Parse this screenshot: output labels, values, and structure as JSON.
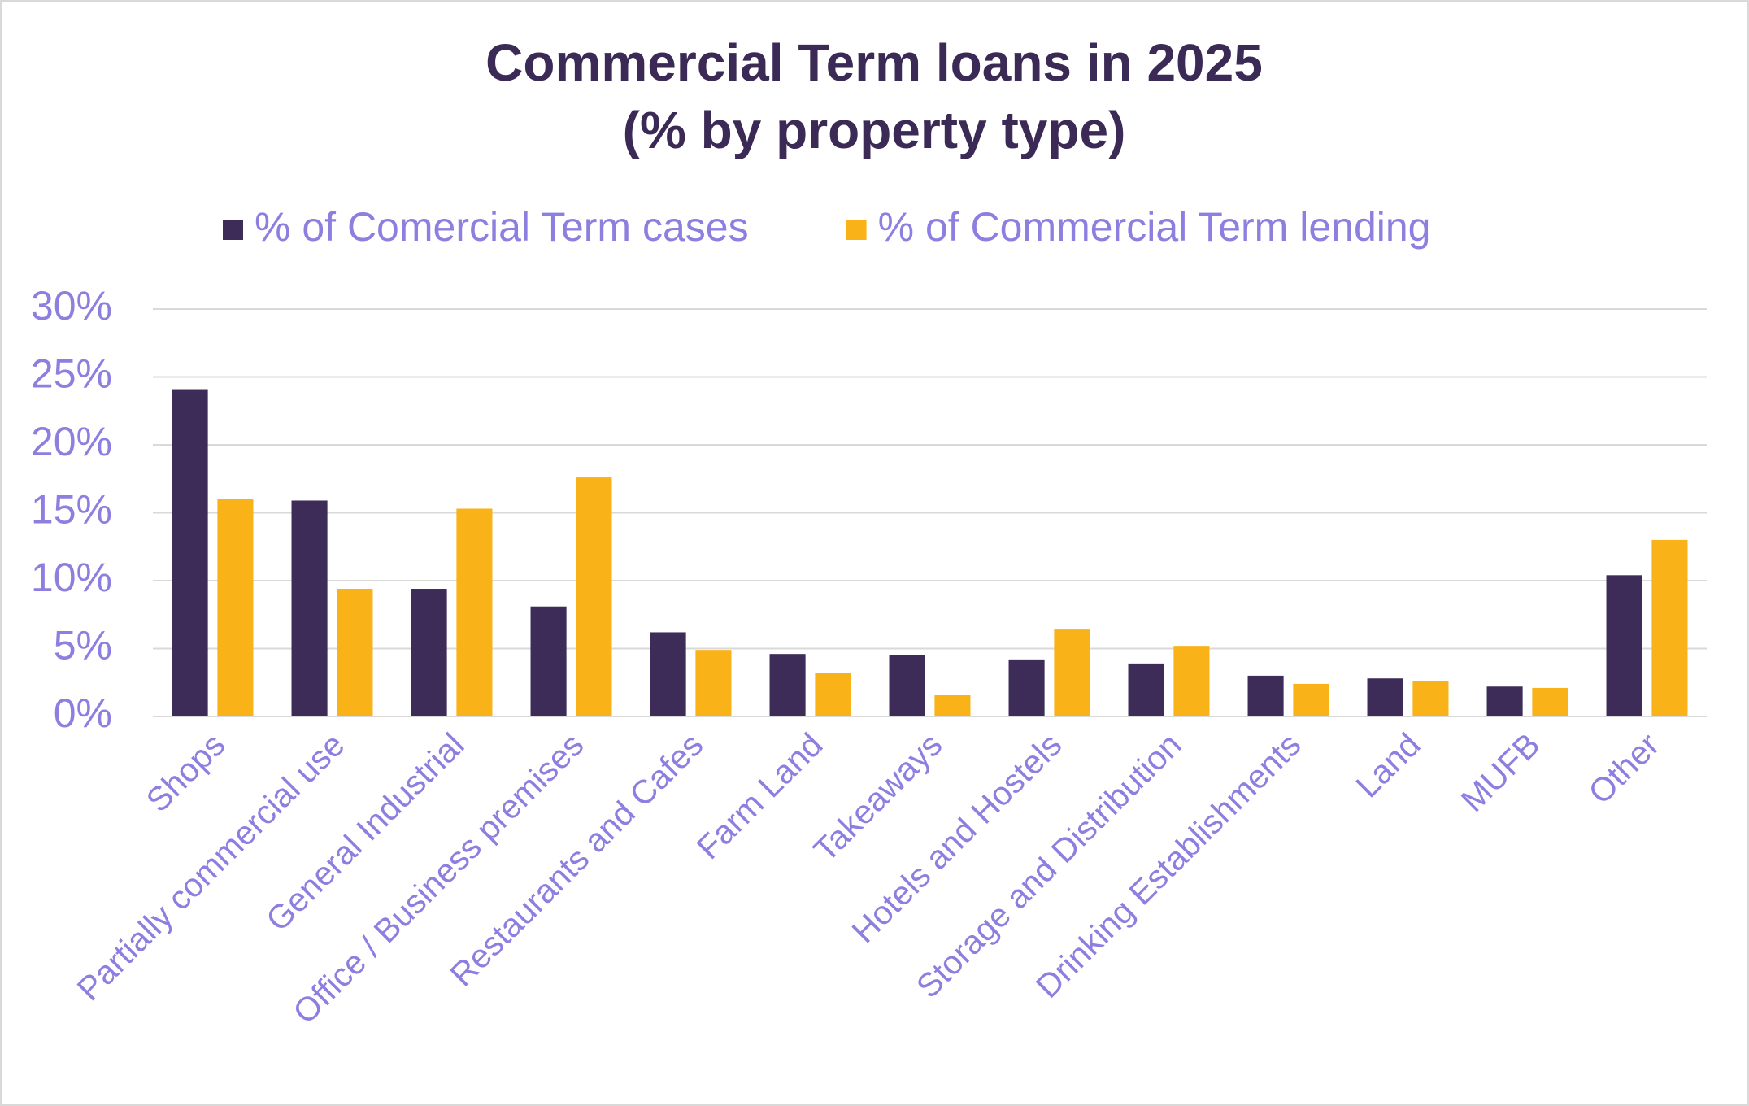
{
  "chart_data": {
    "type": "bar",
    "title": [
      "Commercial Term loans in 2025",
      "(% by property type)"
    ],
    "categories": [
      "Shops",
      "Partially commercial use",
      "General Industrial",
      "Office / Business premises",
      "Restaurants and Cafes",
      "Farm Land",
      "Takeaways",
      "Hotels and Hostels",
      "Storage and Distribution",
      "Drinking Establishments",
      "Land",
      "MUFB",
      "Other"
    ],
    "series": [
      {
        "name": "% of Comercial Term cases",
        "color": "#3d2c57",
        "values": [
          24.1,
          15.9,
          9.4,
          8.1,
          6.2,
          4.6,
          4.5,
          4.2,
          3.9,
          3.0,
          2.8,
          2.2,
          10.4
        ]
      },
      {
        "name": "% of Commercial Term lending",
        "color": "#f9b218",
        "values": [
          16.0,
          9.4,
          15.3,
          17.6,
          4.9,
          3.2,
          1.6,
          6.4,
          5.2,
          2.4,
          2.6,
          2.1,
          13.0
        ]
      }
    ],
    "ylim": [
      0,
      30
    ],
    "yticks": [
      {
        "value": 0,
        "label": "0%"
      },
      {
        "value": 5,
        "label": "5%"
      },
      {
        "value": 10,
        "label": "10%"
      },
      {
        "value": 15,
        "label": "15%"
      },
      {
        "value": 20,
        "label": "20%"
      },
      {
        "value": 25,
        "label": "25%"
      },
      {
        "value": 30,
        "label": "30%"
      }
    ],
    "grid": true,
    "legend": "top"
  }
}
